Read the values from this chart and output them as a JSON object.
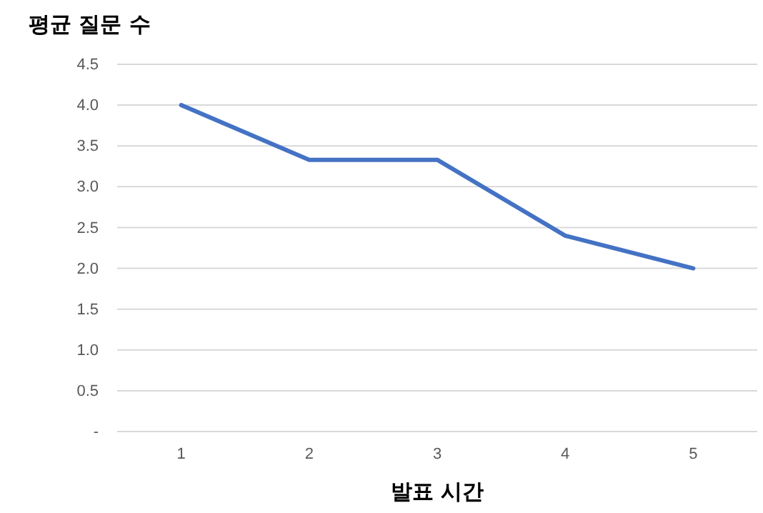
{
  "chart_data": {
    "type": "line",
    "ylabel": "평균 질문 수",
    "xlabel": "발표 시간",
    "categories": [
      "1",
      "2",
      "3",
      "4",
      "5"
    ],
    "series": [
      {
        "color": "#4472c4",
        "values": [
          4.0,
          3.33,
          3.33,
          2.4,
          2.0
        ]
      }
    ],
    "ylim": [
      0,
      4.5
    ],
    "yticks": [
      {
        "value": 0,
        "label": "-"
      },
      {
        "value": 0.5,
        "label": "0.5"
      },
      {
        "value": 1,
        "label": "1.0"
      },
      {
        "value": 1.5,
        "label": "1.5"
      },
      {
        "value": 2,
        "label": "2.0"
      },
      {
        "value": 2.5,
        "label": "2.5"
      },
      {
        "value": 3,
        "label": "3.0"
      },
      {
        "value": 3.5,
        "label": "3.5"
      },
      {
        "value": 4,
        "label": "4.0"
      },
      {
        "value": 4.5,
        "label": "4.5"
      }
    ],
    "grid": "y",
    "marker": "none",
    "line_style": "solid"
  }
}
